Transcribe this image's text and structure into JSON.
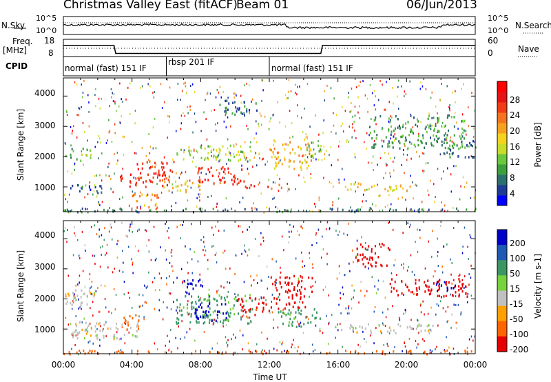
{
  "header": {
    "station": "Christmas Valley East (fitACF)",
    "beam": "Beam 01",
    "date": "06/Jun/2013"
  },
  "top_panels": {
    "nsky_label": "N.Sky",
    "nsearch_label": "N.Search",
    "nsky_ticks": [
      "10^5",
      "10^0"
    ],
    "nsearch_ticks": [
      "10^5",
      "10^0"
    ],
    "freq_label": "Freq.",
    "freq_unit": "[MHz]",
    "freq_ticks": [
      "18",
      "8"
    ],
    "nave_label": "Nave",
    "nave_ticks": [
      "60",
      "0"
    ],
    "cpid_label": "CPID",
    "cpid_segments": [
      {
        "label": "normal (fast) 151 IF",
        "start_hour": 0,
        "end_hour": 6
      },
      {
        "label": "rbsp 201 IF",
        "start_hour": 6,
        "end_hour": 12
      },
      {
        "label": "normal (fast) 151 IF",
        "start_hour": 12,
        "end_hour": 24
      }
    ],
    "freq_series_mhz": [
      {
        "hour": 0,
        "value": 14.5
      },
      {
        "hour": 2.95,
        "value": 14.5
      },
      {
        "hour": 3.05,
        "value": 9.8
      },
      {
        "hour": 15.0,
        "value": 9.8
      },
      {
        "hour": 15.1,
        "value": 14.5
      },
      {
        "hour": 24,
        "value": 14.5
      }
    ]
  },
  "chart_data": [
    {
      "type": "heatmap",
      "name": "power",
      "ylabel": "Slant Range [km]",
      "xlabel": "Time UT",
      "x_ticks": [
        "00:00",
        "04:00",
        "08:00",
        "12:00",
        "16:00",
        "20:00",
        "00:00"
      ],
      "x_range_hours": [
        0,
        24
      ],
      "y_ticks": [
        "1000",
        "2000",
        "3000",
        "4000"
      ],
      "y_range_km": [
        180,
        4600
      ],
      "colorbar": {
        "label": "Power [dB]",
        "ticks": [
          "28",
          "24",
          "20",
          "16",
          "12",
          "8",
          "4"
        ],
        "range": [
          0,
          32
        ],
        "colors": [
          "#0000ff",
          "#1e3c96",
          "#2d6e6e",
          "#3c9e3c",
          "#69c83c",
          "#c8dc28",
          "#f5d21e",
          "#f5a01e",
          "#f5731e",
          "#f03c14",
          "#e61414",
          "#ff0000"
        ]
      },
      "blobs": [
        {
          "t0": 0.0,
          "t1": 1.6,
          "r0": 1900,
          "r1": 2300,
          "value": 10
        },
        {
          "t0": 0.2,
          "t1": 2.4,
          "r0": 800,
          "r1": 1100,
          "value": 6
        },
        {
          "t0": 3.0,
          "t1": 6.2,
          "r0": 1000,
          "r1": 1500,
          "value": 27
        },
        {
          "t0": 4.2,
          "t1": 6.5,
          "r0": 1500,
          "r1": 1900,
          "value": 26
        },
        {
          "t0": 3.8,
          "t1": 5.5,
          "r0": 300,
          "r1": 800,
          "value": 22
        },
        {
          "t0": 5.5,
          "t1": 8.0,
          "r0": 850,
          "r1": 1250,
          "value": 18
        },
        {
          "t0": 6.5,
          "t1": 11.5,
          "r0": 1900,
          "r1": 2400,
          "value": 14
        },
        {
          "t0": 7.8,
          "t1": 10.5,
          "r0": 1100,
          "r1": 1700,
          "value": 28
        },
        {
          "t0": 9.0,
          "t1": 11.5,
          "r0": 3400,
          "r1": 3900,
          "value": 6
        },
        {
          "t0": 10.5,
          "t1": 12.8,
          "r0": 950,
          "r1": 1100,
          "value": 26
        },
        {
          "t0": 12.0,
          "t1": 14.5,
          "r0": 1600,
          "r1": 2600,
          "value": 18
        },
        {
          "t0": 14.0,
          "t1": 15.0,
          "r0": 1900,
          "r1": 2500,
          "value": 12
        },
        {
          "t0": 16.2,
          "t1": 20.5,
          "r0": 900,
          "r1": 1150,
          "value": 17
        },
        {
          "t0": 17.8,
          "t1": 23.5,
          "r0": 2300,
          "r1": 3400,
          "value": 9
        },
        {
          "t0": 22.0,
          "t1": 24.0,
          "r0": 2000,
          "r1": 2600,
          "value": 7
        },
        {
          "t0": 0.0,
          "t1": 24.0,
          "r0": 200,
          "r1": 320,
          "value": 8
        }
      ]
    },
    {
      "type": "heatmap",
      "name": "velocity",
      "ylabel": "Slant Range [km]",
      "xlabel": "Time UT",
      "x_ticks": [
        "00:00",
        "04:00",
        "08:00",
        "12:00",
        "16:00",
        "20:00",
        "00:00"
      ],
      "x_range_hours": [
        0,
        24
      ],
      "y_ticks": [
        "1000",
        "2000",
        "3000",
        "4000"
      ],
      "y_range_km": [
        180,
        4600
      ],
      "colorbar": {
        "label": "Velocity [m s-1]",
        "ticks": [
          "200",
          "100",
          "50",
          "15",
          "-15",
          "-50",
          "-100",
          "-200"
        ],
        "colors": [
          "#0000c8",
          "#1e5ab4",
          "#3c9664",
          "#78d23c",
          "#c0c0c0",
          "#ffa000",
          "#ff6400",
          "#e60000"
        ]
      },
      "blobs": [
        {
          "t0": 0.0,
          "t1": 1.8,
          "r0": 1800,
          "r1": 2400,
          "value": 0
        },
        {
          "t0": 0.4,
          "t1": 4.5,
          "r0": 700,
          "r1": 1300,
          "value": 0
        },
        {
          "t0": 3.5,
          "t1": 4.5,
          "r0": 1000,
          "r1": 1500,
          "value": -60
        },
        {
          "t0": 6.5,
          "t1": 11.0,
          "r0": 1200,
          "r1": 2200,
          "value": 40
        },
        {
          "t0": 7.5,
          "t1": 9.5,
          "r0": 1300,
          "r1": 1900,
          "value": 220
        },
        {
          "t0": 7.0,
          "t1": 8.2,
          "r0": 2200,
          "r1": 2700,
          "value": 180
        },
        {
          "t0": 10.0,
          "t1": 12.0,
          "r0": 1500,
          "r1": 2100,
          "value": -90
        },
        {
          "t0": 12.0,
          "t1": 14.5,
          "r0": 1700,
          "r1": 2800,
          "value": -220
        },
        {
          "t0": 12.5,
          "t1": 15.0,
          "r0": 1100,
          "r1": 1700,
          "value": 40
        },
        {
          "t0": 15.5,
          "t1": 21.5,
          "r0": 900,
          "r1": 1200,
          "value": 0
        },
        {
          "t0": 17.0,
          "t1": 19.0,
          "r0": 3100,
          "r1": 3900,
          "value": -220
        },
        {
          "t0": 19.0,
          "t1": 23.5,
          "r0": 2100,
          "r1": 2700,
          "value": -200
        },
        {
          "t0": 21.5,
          "t1": 23.0,
          "r0": 2300,
          "r1": 2600,
          "value": 200
        },
        {
          "t0": 0.0,
          "t1": 24.0,
          "r0": 200,
          "r1": 320,
          "value": -60
        }
      ]
    }
  ]
}
